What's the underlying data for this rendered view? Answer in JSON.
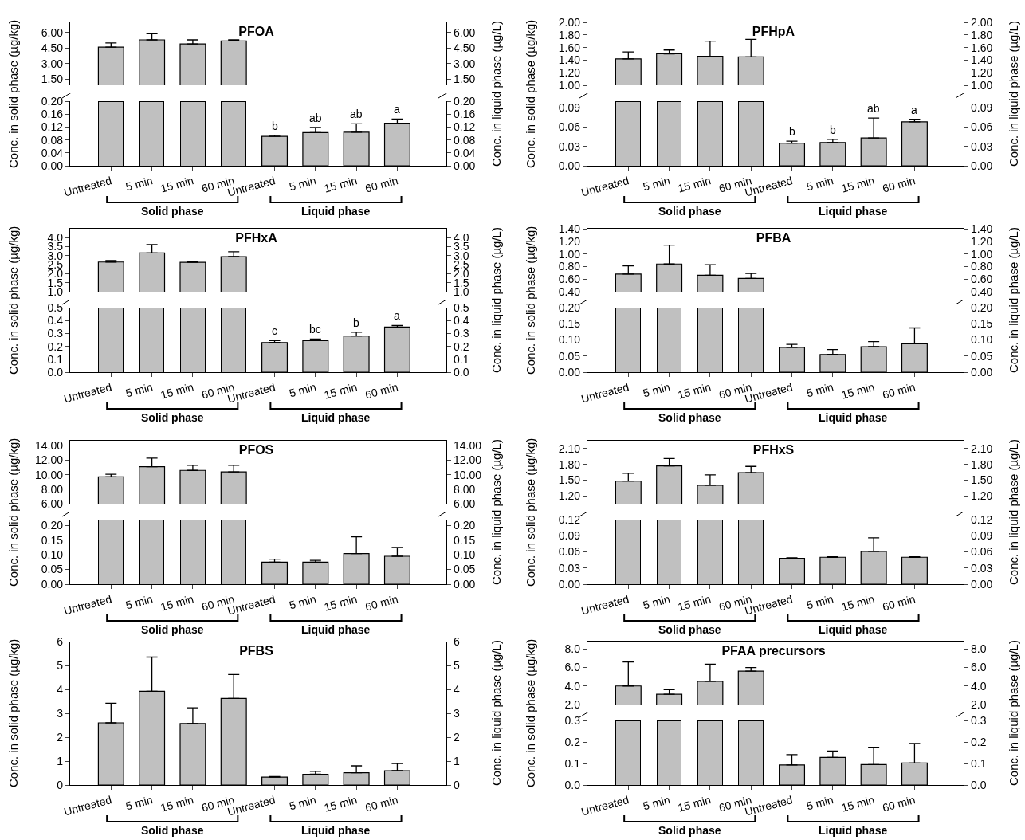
{
  "chart_data": [
    {
      "type": "bar",
      "title": "PFOA",
      "tick_labels": "y",
      "categories": [
        null,
        null,
        null,
        null,
        null,
        null,
        null,
        null
      ],
      "series": [
        {
          "color": "#c0c0c0",
          "values": [
            4.6,
            5.3,
            4.9,
            5.2,
            null,
            null,
            null,
            null
          ],
          "errors": [
            [
              4.6,
              5.0
            ],
            [
              5.3,
              5.9
            ],
            [
              4.9,
              5.3
            ],
            [
              5.2,
              5.3
            ],
            null,
            null,
            null,
            null
          ]
        }
      ],
      "ylim": [
        0.9,
        7.0
      ],
      "yticks": [
        {
          "value": 1.5,
          "label": "1.50"
        },
        {
          "value": 3,
          "label": "3.00"
        },
        {
          "value": 4.5,
          "label": "4.50"
        },
        {
          "value": 6,
          "label": "6.00"
        }
      ],
      "y2lim": [
        0.9,
        7.0
      ],
      "y2ticks": [
        {
          "value": 1.5,
          "label": "1.50"
        },
        {
          "value": 3,
          "label": "3.00"
        },
        {
          "value": 4.5,
          "label": "4.50"
        },
        {
          "value": 6,
          "label": "6.00"
        }
      ]
    },
    {
      "type": "bar",
      "ylabel": "Conc. in solid phase (µg/kg)",
      "y2label": "Conc. in liquid phase (µg/L)",
      "categories": [
        "Untreated",
        "5 min",
        "15 min",
        "60 min",
        "Untreated",
        "5 min",
        "15 min",
        "60 min"
      ],
      "series": [
        {
          "color": "#c0c0c0",
          "values": [
            null,
            null,
            null,
            null,
            0.091,
            0.103,
            0.104,
            0.132
          ],
          "errors": [
            null,
            null,
            null,
            null,
            [
              0.091,
              0.095
            ],
            [
              0.103,
              0.119
            ],
            [
              0.104,
              0.13
            ],
            [
              0.132,
              0.145
            ]
          ]
        }
      ],
      "ylim": [
        0,
        0.2
      ],
      "yticks": [
        {
          "value": 0,
          "label": "0.00"
        },
        {
          "value": 0.04,
          "label": "0.04"
        },
        {
          "value": 0.08,
          "label": "0.08"
        },
        {
          "value": 0.12,
          "label": "0.12"
        },
        {
          "value": 0.16,
          "label": "0.16"
        },
        {
          "value": 0.2,
          "label": "0.20"
        }
      ],
      "y2lim": [
        0,
        0.2
      ],
      "y2ticks": [
        {
          "value": 0,
          "label": "0.00"
        },
        {
          "value": 0.04,
          "label": "0.04"
        },
        {
          "value": 0.08,
          "label": "0.08"
        },
        {
          "value": 0.12,
          "label": "0.12"
        },
        {
          "value": 0.16,
          "label": "0.16"
        },
        {
          "value": 0.2,
          "label": "0.20"
        }
      ],
      "annotations": [
        "Solid phase",
        "Liquid phase",
        "b",
        "ab",
        "ab",
        "a"
      ]
    },
    {
      "type": "bar",
      "title": "PFHpA",
      "tick_labels": "y",
      "categories": [
        null,
        null,
        null,
        null,
        null,
        null,
        null,
        null
      ],
      "series": [
        {
          "color": "#c0c0c0",
          "values": [
            1.42,
            1.5,
            1.46,
            1.45,
            null,
            null,
            null,
            null
          ],
          "errors": [
            [
              1.42,
              1.53
            ],
            [
              1.5,
              1.56
            ],
            [
              1.46,
              1.7
            ],
            [
              1.45,
              1.73
            ],
            null,
            null,
            null,
            null
          ]
        }
      ],
      "ylim": [
        1.0,
        2.0
      ],
      "yticks": [
        {
          "value": 1,
          "label": "1.00"
        },
        {
          "value": 1.2,
          "label": "1.20"
        },
        {
          "value": 1.4,
          "label": "1.40"
        },
        {
          "value": 1.6,
          "label": "1.60"
        },
        {
          "value": 1.8,
          "label": "1.80"
        },
        {
          "value": 2,
          "label": "2.00"
        }
      ],
      "y2lim": [
        1.0,
        2.0
      ],
      "y2ticks": [
        {
          "value": 1,
          "label": "1.00"
        },
        {
          "value": 1.2,
          "label": "1.20"
        },
        {
          "value": 1.4,
          "label": "1.40"
        },
        {
          "value": 1.6,
          "label": "1.60"
        },
        {
          "value": 1.8,
          "label": "1.80"
        },
        {
          "value": 2,
          "label": "2.00"
        }
      ]
    },
    {
      "type": "bar",
      "ylabel": "Conc. in solid phase (µg/kg)",
      "y2label": "Conc. in liquid phase (µg/L)",
      "categories": [
        "Untreated",
        "5 min",
        "15 min",
        "60 min",
        "Untreated",
        "5 min",
        "15 min",
        "60 min"
      ],
      "series": [
        {
          "color": "#c0c0c0",
          "values": [
            null,
            null,
            null,
            null,
            0.035,
            0.036,
            0.043,
            0.068
          ],
          "errors": [
            null,
            null,
            null,
            null,
            [
              0.035,
              0.038
            ],
            [
              0.036,
              0.041
            ],
            [
              0.043,
              0.074
            ],
            [
              0.068,
              0.072
            ]
          ]
        }
      ],
      "ylim": [
        0,
        0.1
      ],
      "yticks": [
        {
          "value": 0,
          "label": "0.00"
        },
        {
          "value": 0.03,
          "label": "0.03"
        },
        {
          "value": 0.06,
          "label": "0.06"
        },
        {
          "value": 0.09,
          "label": "0.09"
        }
      ],
      "y2lim": [
        0,
        0.1
      ],
      "y2ticks": [
        {
          "value": 0,
          "label": "0.00"
        },
        {
          "value": 0.03,
          "label": "0.03"
        },
        {
          "value": 0.06,
          "label": "0.06"
        },
        {
          "value": 0.09,
          "label": "0.09"
        }
      ],
      "annotations": [
        "Solid phase",
        "Liquid phase",
        "b",
        "b",
        "ab",
        "a"
      ]
    },
    {
      "type": "bar",
      "title": "PFHxA",
      "tick_labels": "y",
      "categories": [
        null,
        null,
        null,
        null,
        null,
        null,
        null,
        null
      ],
      "series": [
        {
          "color": "#c0c0c0",
          "values": [
            2.65,
            3.15,
            2.63,
            2.95,
            null,
            null,
            null,
            null
          ],
          "errors": [
            [
              2.65,
              2.73
            ],
            [
              3.15,
              3.62
            ],
            [
              2.63,
              2.65
            ],
            [
              2.95,
              3.22
            ],
            null,
            null,
            null,
            null
          ]
        }
      ],
      "ylim": [
        1.0,
        4.5
      ],
      "yticks": [
        {
          "value": 1,
          "label": "1.0"
        },
        1.5,
        {
          "value": 2,
          "label": "2.0"
        },
        2.5,
        {
          "value": 3,
          "label": "3.0"
        },
        3.5,
        {
          "value": 4,
          "label": "4.0"
        }
      ],
      "y2lim": [
        1.0,
        4.5
      ],
      "y2ticks": [
        {
          "value": 1,
          "label": "1.0"
        },
        1.5,
        {
          "value": 2,
          "label": "2.0"
        },
        2.5,
        {
          "value": 3,
          "label": "3.0"
        },
        3.5,
        {
          "value": 4,
          "label": "4.0"
        }
      ]
    },
    {
      "type": "bar",
      "ylabel": "Conc. in solid phase (µg/kg)",
      "y2label": "Conc. in liquid phase (µg/L)",
      "categories": [
        "Untreated",
        "5 min",
        "15 min",
        "60 min",
        "Untreated",
        "5 min",
        "15 min",
        "60 min"
      ],
      "series": [
        {
          "color": "#c0c0c0",
          "values": [
            null,
            null,
            null,
            null,
            0.23,
            0.245,
            0.28,
            0.35
          ],
          "errors": [
            null,
            null,
            null,
            null,
            [
              0.23,
              0.245
            ],
            [
              0.245,
              0.257
            ],
            [
              0.28,
              0.31
            ],
            [
              0.35,
              0.362
            ]
          ]
        }
      ],
      "ylim": [
        0,
        0.5
      ],
      "yticks": [
        {
          "value": 0,
          "label": "0.0"
        },
        0.1,
        0.2,
        0.3,
        0.4,
        0.5
      ],
      "y2lim": [
        0,
        0.5
      ],
      "y2ticks": [
        {
          "value": 0,
          "label": "0.0"
        },
        0.1,
        0.2,
        0.3,
        0.4,
        0.5
      ],
      "annotations": [
        "Solid phase",
        "Liquid phase",
        "c",
        "bc",
        "b",
        "a"
      ]
    },
    {
      "type": "bar",
      "title": "PFBA",
      "tick_labels": "y",
      "categories": [
        null,
        null,
        null,
        null,
        null,
        null,
        null,
        null
      ],
      "series": [
        {
          "color": "#c0c0c0",
          "values": [
            0.68,
            0.84,
            0.66,
            0.61,
            null,
            null,
            null,
            null
          ],
          "errors": [
            [
              0.68,
              0.81
            ],
            [
              0.84,
              1.14
            ],
            [
              0.66,
              0.83
            ],
            [
              0.61,
              0.69
            ],
            null,
            null,
            null,
            null
          ]
        }
      ],
      "ylim": [
        0.4,
        1.4
      ],
      "yticks": [
        {
          "value": 0.4,
          "label": "0.40"
        },
        {
          "value": 0.6,
          "label": "0.60"
        },
        {
          "value": 0.8,
          "label": "0.80"
        },
        {
          "value": 1,
          "label": "1.00"
        },
        {
          "value": 1.2,
          "label": "1.20"
        },
        {
          "value": 1.4,
          "label": "1.40"
        }
      ],
      "y2lim": [
        0.4,
        1.4
      ],
      "y2ticks": [
        {
          "value": 0.4,
          "label": "0.40"
        },
        {
          "value": 0.6,
          "label": "0.60"
        },
        {
          "value": 0.8,
          "label": "0.80"
        },
        {
          "value": 1,
          "label": "1.00"
        },
        {
          "value": 1.2,
          "label": "1.20"
        },
        {
          "value": 1.4,
          "label": "1.40"
        }
      ]
    },
    {
      "type": "bar",
      "ylabel": "Conc. in solid phase (µg/kg)",
      "y2label": "Conc. in liquid phase (µg/L)",
      "categories": [
        "Untreated",
        "5 min",
        "15 min",
        "60 min",
        "Untreated",
        "5 min",
        "15 min",
        "60 min"
      ],
      "series": [
        {
          "color": "#c0c0c0",
          "values": [
            null,
            null,
            null,
            null,
            0.077,
            0.055,
            0.079,
            0.088
          ],
          "errors": [
            null,
            null,
            null,
            null,
            [
              0.077,
              0.086
            ],
            [
              0.055,
              0.07
            ],
            [
              0.079,
              0.095
            ],
            [
              0.088,
              0.137
            ]
          ]
        }
      ],
      "ylim": [
        0,
        0.2
      ],
      "yticks": [
        {
          "value": 0,
          "label": "0.00"
        },
        {
          "value": 0.05,
          "label": "0.05"
        },
        {
          "value": 0.1,
          "label": "0.10"
        },
        {
          "value": 0.15,
          "label": "0.15"
        },
        {
          "value": 0.2,
          "label": "0.20"
        }
      ],
      "y2lim": [
        0,
        0.2
      ],
      "y2ticks": [
        {
          "value": 0,
          "label": "0.00"
        },
        {
          "value": 0.05,
          "label": "0.05"
        },
        {
          "value": 0.1,
          "label": "0.10"
        },
        {
          "value": 0.15,
          "label": "0.15"
        },
        {
          "value": 0.2,
          "label": "0.20"
        }
      ],
      "annotations": [
        "Solid phase",
        "Liquid phase"
      ]
    },
    {
      "type": "bar",
      "title": "PFOS",
      "tick_labels": "y",
      "categories": [
        null,
        null,
        null,
        null,
        null,
        null,
        null,
        null
      ],
      "series": [
        {
          "color": "#c0c0c0",
          "values": [
            9.7,
            11.1,
            10.6,
            10.4,
            null,
            null,
            null,
            null
          ],
          "errors": [
            [
              9.7,
              10.05
            ],
            [
              11.1,
              12.3
            ],
            [
              10.6,
              11.3
            ],
            [
              10.4,
              11.3
            ],
            null,
            null,
            null,
            null
          ]
        }
      ],
      "ylim": [
        6,
        14.7
      ],
      "yticks": [
        {
          "value": 6,
          "label": "6.00"
        },
        {
          "value": 8,
          "label": "8.00"
        },
        {
          "value": 10,
          "label": "10.00"
        },
        {
          "value": 12,
          "label": "12.00"
        },
        {
          "value": 14,
          "label": "14.00"
        }
      ],
      "y2lim": [
        6,
        14.7
      ],
      "y2ticks": [
        {
          "value": 6,
          "label": "6.00"
        },
        {
          "value": 8,
          "label": "8.00"
        },
        {
          "value": 10,
          "label": "10.00"
        },
        {
          "value": 12,
          "label": "12.00"
        },
        {
          "value": 14,
          "label": "14.00"
        }
      ]
    },
    {
      "type": "bar",
      "ylabel": "Conc. in solid phase (µg/kg)",
      "y2label": "Conc. in liquid phase (µg/L)",
      "categories": [
        "Untreated",
        "5 min",
        "15 min",
        "60 min",
        "Untreated",
        "5 min",
        "15 min",
        "60 min"
      ],
      "series": [
        {
          "color": "#c0c0c0",
          "values": [
            null,
            null,
            null,
            null,
            0.075,
            0.075,
            0.104,
            0.095
          ],
          "errors": [
            null,
            null,
            null,
            null,
            [
              0.075,
              0.085
            ],
            [
              0.075,
              0.081
            ],
            [
              0.104,
              0.161
            ],
            [
              0.095,
              0.125
            ]
          ]
        }
      ],
      "ylim": [
        0,
        0.22
      ],
      "yticks": [
        {
          "value": 0,
          "label": "0.00"
        },
        {
          "value": 0.05,
          "label": "0.05"
        },
        {
          "value": 0.1,
          "label": "0.10"
        },
        {
          "value": 0.15,
          "label": "0.15"
        },
        {
          "value": 0.2,
          "label": "0.20"
        }
      ],
      "y2lim": [
        0,
        0.22
      ],
      "y2ticks": [
        {
          "value": 0,
          "label": "0.00"
        },
        {
          "value": 0.05,
          "label": "0.05"
        },
        {
          "value": 0.1,
          "label": "0.10"
        },
        {
          "value": 0.15,
          "label": "0.15"
        },
        {
          "value": 0.2,
          "label": "0.20"
        }
      ],
      "annotations": [
        "Solid phase",
        "Liquid phase"
      ]
    },
    {
      "type": "bar",
      "title": "PFHxS",
      "tick_labels": "y",
      "categories": [
        null,
        null,
        null,
        null,
        null,
        null,
        null,
        null
      ],
      "series": [
        {
          "color": "#c0c0c0",
          "values": [
            1.48,
            1.77,
            1.4,
            1.64,
            null,
            null,
            null,
            null
          ],
          "errors": [
            [
              1.48,
              1.63
            ],
            [
              1.77,
              1.91
            ],
            [
              1.4,
              1.6
            ],
            [
              1.64,
              1.76
            ],
            null,
            null,
            null,
            null
          ]
        }
      ],
      "ylim": [
        1.05,
        2.25
      ],
      "yticks": [
        {
          "value": 1.2,
          "label": "1.20"
        },
        {
          "value": 1.5,
          "label": "1.50"
        },
        {
          "value": 1.8,
          "label": "1.80"
        },
        {
          "value": 2.1,
          "label": "2.10"
        }
      ],
      "y2lim": [
        1.05,
        2.25
      ],
      "y2ticks": [
        {
          "value": 1.2,
          "label": "1.20"
        },
        {
          "value": 1.5,
          "label": "1.50"
        },
        {
          "value": 1.8,
          "label": "1.80"
        },
        {
          "value": 2.1,
          "label": "2.10"
        }
      ]
    },
    {
      "type": "bar",
      "ylabel": "Conc. in solid phase (µg/kg)",
      "y2label": "Conc. in liquid phase (µg/L)",
      "categories": [
        "Untreated",
        "5 min",
        "15 min",
        "60 min",
        "Untreated",
        "5 min",
        "15 min",
        "60 min"
      ],
      "series": [
        {
          "color": "#c0c0c0",
          "values": [
            null,
            null,
            null,
            null,
            0.048,
            0.05,
            0.061,
            0.05
          ],
          "errors": [
            null,
            null,
            null,
            null,
            [
              0.048,
              0.049
            ],
            [
              0.05,
              0.051
            ],
            [
              0.061,
              0.086
            ],
            [
              0.05,
              0.051
            ]
          ]
        }
      ],
      "ylim": [
        0,
        0.12
      ],
      "yticks": [
        {
          "value": 0,
          "label": "0.00"
        },
        {
          "value": 0.03,
          "label": "0.03"
        },
        {
          "value": 0.06,
          "label": "0.06"
        },
        {
          "value": 0.09,
          "label": "0.09"
        },
        {
          "value": 0.12,
          "label": "0.12"
        }
      ],
      "y2lim": [
        0,
        0.12
      ],
      "y2ticks": [
        {
          "value": 0,
          "label": "0.00"
        },
        {
          "value": 0.03,
          "label": "0.03"
        },
        {
          "value": 0.06,
          "label": "0.06"
        },
        {
          "value": 0.09,
          "label": "0.09"
        },
        {
          "value": 0.12,
          "label": "0.12"
        }
      ],
      "annotations": [
        "Solid phase",
        "Liquid phase"
      ]
    },
    {
      "type": "bar",
      "title": "PFBS",
      "ylabel": "Conc. in solid phase (µg/kg)",
      "y2label": "Conc. in liquid phase (µg/L)",
      "categories": [
        "Untreated",
        "5 min",
        "15 min",
        "60 min",
        "Untreated",
        "5 min",
        "15 min",
        "60 min"
      ],
      "series": [
        {
          "color": "#c0c0c0",
          "values": [
            2.6,
            3.92,
            2.57,
            3.62,
            null,
            null,
            null,
            null
          ],
          "errors": [
            [
              2.6,
              3.42
            ],
            [
              3.92,
              5.35
            ],
            [
              2.57,
              3.23
            ],
            [
              3.62,
              4.62
            ],
            null,
            null,
            null,
            null
          ]
        },
        {
          "color": "#c0c0c0",
          "values": [
            null,
            null,
            null,
            null,
            0.33,
            0.45,
            0.51,
            0.6
          ],
          "errors": [
            null,
            null,
            null,
            null,
            [
              0.33,
              0.35
            ],
            [
              0.45,
              0.57
            ],
            [
              0.51,
              0.8
            ],
            [
              0.6,
              0.9
            ]
          ]
        }
      ],
      "ylim": [
        0,
        6
      ],
      "yticks": [
        0,
        1,
        2,
        3,
        4,
        5,
        6
      ],
      "y2lim": [
        0,
        6
      ],
      "y2ticks": [
        0,
        1,
        2,
        3,
        4,
        5,
        6
      ],
      "annotations": [
        "Solid phase",
        "Liquid phase"
      ]
    },
    {
      "type": "bar",
      "title": "PFAA precursors",
      "tick_labels": "y",
      "categories": [
        null,
        null,
        null,
        null,
        null,
        null,
        null,
        null
      ],
      "series": [
        {
          "color": "#c0c0c0",
          "values": [
            4.0,
            3.1,
            4.5,
            5.6,
            null,
            null,
            null,
            null
          ],
          "errors": [
            [
              4.0,
              6.6
            ],
            [
              3.1,
              3.6
            ],
            [
              4.5,
              6.35
            ],
            [
              5.6,
              6.0
            ],
            null,
            null,
            null,
            null
          ]
        }
      ],
      "ylim": [
        2,
        8.8
      ],
      "yticks": [
        {
          "value": 2,
          "label": "2.0"
        },
        {
          "value": 4,
          "label": "4.0"
        },
        {
          "value": 6,
          "label": "6.0"
        },
        {
          "value": 8,
          "label": "8.0"
        }
      ],
      "y2lim": [
        2,
        8.8
      ],
      "y2ticks": [
        {
          "value": 2,
          "label": "2.0"
        },
        {
          "value": 4,
          "label": "4.0"
        },
        {
          "value": 6,
          "label": "6.0"
        },
        {
          "value": 8,
          "label": "8.0"
        }
      ]
    },
    {
      "type": "bar",
      "ylabel": "Conc. in solid phase (µg/kg)",
      "y2label": "Conc. in liquid phase (µg/L)",
      "categories": [
        "Untreated",
        "5 min",
        "15 min",
        "60 min",
        "Untreated",
        "5 min",
        "15 min",
        "60 min"
      ],
      "series": [
        {
          "color": "#c0c0c0",
          "values": [
            null,
            null,
            null,
            null,
            0.093,
            0.128,
            0.095,
            0.102
          ],
          "errors": [
            null,
            null,
            null,
            null,
            [
              0.093,
              0.141
            ],
            [
              0.128,
              0.158
            ],
            [
              0.095,
              0.175
            ],
            [
              0.102,
              0.193
            ]
          ]
        }
      ],
      "ylim": [
        0,
        0.3
      ],
      "yticks": [
        {
          "value": 0,
          "label": "0.0"
        },
        0.1,
        0.2,
        0.3
      ],
      "y2lim": [
        0,
        0.3
      ],
      "y2ticks": [
        {
          "value": 0,
          "label": "0.0"
        },
        0.1,
        0.2,
        0.3
      ],
      "annotations": [
        "Solid phase",
        "Liquid phase"
      ]
    }
  ]
}
